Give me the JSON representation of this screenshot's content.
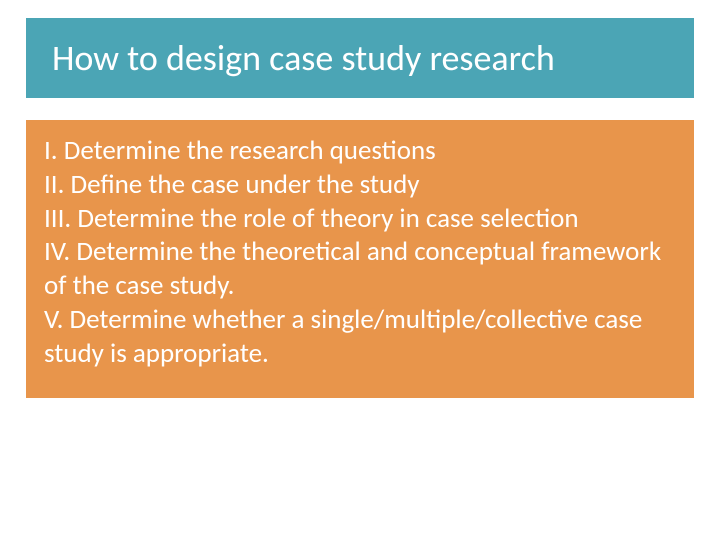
{
  "slide": {
    "title": "How to design case study research",
    "items": [
      "I. Determine the research questions",
      "II. Define the case under the study",
      "III. Determine the role of theory in case selection",
      "IV. Determine the theoretical and conceptual framework of the case study.",
      "V. Determine whether a single/multiple/collective case study is appropriate."
    ],
    "colors": {
      "title_bg": "#4ba5b5",
      "title_fg": "#ffffff",
      "content_bg": "#e8954b",
      "content_fg": "#ffffff",
      "page_bg": "#ffffff"
    },
    "typography": {
      "title_fontsize": 36,
      "body_fontsize": 27,
      "font_family": "Calibri"
    }
  }
}
